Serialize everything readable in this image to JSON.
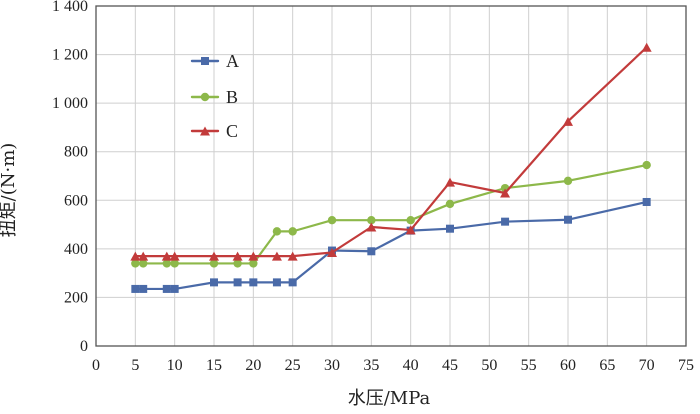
{
  "chart_data": {
    "type": "line",
    "title": "",
    "xlabel": "水压/MPa",
    "ylabel": "扭矩/(N·m)",
    "xlim": [
      0,
      75
    ],
    "ylim": [
      0,
      1400
    ],
    "x_ticks": [
      0,
      5,
      10,
      15,
      20,
      25,
      30,
      35,
      40,
      45,
      50,
      55,
      60,
      65,
      70,
      75
    ],
    "x_tick_labels": [
      "0",
      "5",
      "10",
      "15",
      "20",
      "25",
      "30",
      "35",
      "40",
      "45",
      "50",
      "55",
      "60",
      "65",
      "70",
      "75"
    ],
    "y_ticks": [
      0,
      200,
      400,
      600,
      800,
      1000,
      1200,
      1400
    ],
    "y_tick_labels": [
      "0",
      "200",
      "400",
      "600",
      "800",
      "1 000",
      "1 200",
      "1 400"
    ],
    "grid": true,
    "legend": "upper-left",
    "series": [
      {
        "name": "A",
        "color": "#4a6aa8",
        "marker": "square",
        "x": [
          5,
          6,
          9,
          10,
          15,
          18,
          20,
          23,
          25,
          30,
          35,
          40,
          45,
          52,
          60,
          70
        ],
        "y": [
          235,
          235,
          235,
          235,
          262,
          262,
          262,
          262,
          262,
          393,
          390,
          475,
          483,
          512,
          520,
          593
        ]
      },
      {
        "name": "B",
        "color": "#8db84a",
        "marker": "circle",
        "x": [
          5,
          6,
          9,
          10,
          15,
          18,
          20,
          23,
          25,
          30,
          35,
          40,
          45,
          52,
          60,
          70
        ],
        "y": [
          340,
          340,
          340,
          340,
          340,
          340,
          340,
          472,
          472,
          518,
          518,
          518,
          585,
          650,
          680,
          745
        ]
      },
      {
        "name": "C",
        "color": "#c23b3b",
        "marker": "triangle",
        "x": [
          5,
          6,
          9,
          10,
          15,
          18,
          20,
          23,
          25,
          30,
          35,
          40,
          45,
          52,
          60,
          70
        ],
        "y": [
          370,
          370,
          370,
          370,
          370,
          370,
          370,
          370,
          370,
          385,
          490,
          478,
          675,
          630,
          925,
          1230
        ]
      }
    ]
  }
}
